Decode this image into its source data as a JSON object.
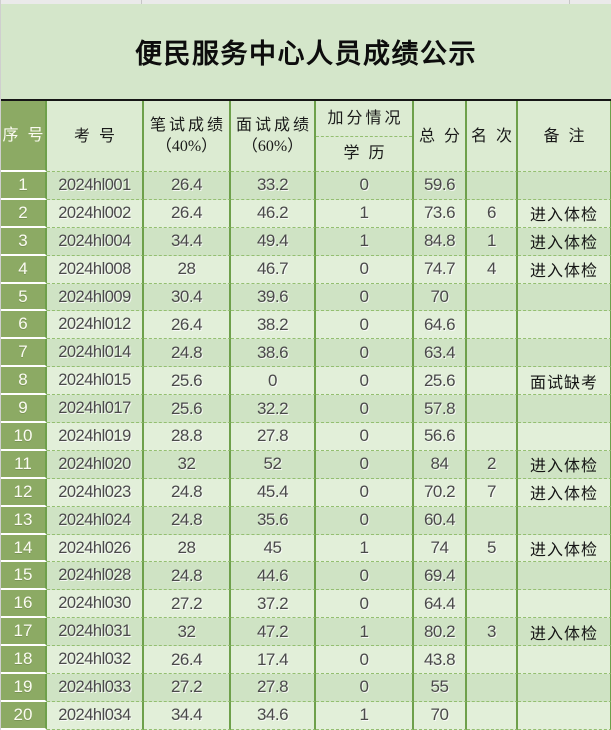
{
  "title": "便民服务中心人员成绩公示",
  "table": {
    "headers": {
      "serial": "序号",
      "exam_no": "考号",
      "written_line1": "笔试成绩",
      "written_line2": "（40%）",
      "interview_line1": "面试成绩",
      "interview_line2": "（60%）",
      "bonus": "加分情况",
      "education": "学历",
      "total": "总分",
      "rank": "名次",
      "remark": "备注"
    },
    "rows": [
      {
        "serial": "1",
        "exam_no": "2024hl001",
        "written": "26.4",
        "interview": "33.2",
        "education": "0",
        "total": "59.6",
        "rank": "",
        "remark": ""
      },
      {
        "serial": "2",
        "exam_no": "2024hl002",
        "written": "26.4",
        "interview": "46.2",
        "education": "1",
        "total": "73.6",
        "rank": "6",
        "remark": "进入体检"
      },
      {
        "serial": "3",
        "exam_no": "2024hl004",
        "written": "34.4",
        "interview": "49.4",
        "education": "1",
        "total": "84.8",
        "rank": "1",
        "remark": "进入体检"
      },
      {
        "serial": "4",
        "exam_no": "2024hl008",
        "written": "28",
        "interview": "46.7",
        "education": "0",
        "total": "74.7",
        "rank": "4",
        "remark": "进入体检"
      },
      {
        "serial": "5",
        "exam_no": "2024hl009",
        "written": "30.4",
        "interview": "39.6",
        "education": "0",
        "total": "70",
        "rank": "",
        "remark": ""
      },
      {
        "serial": "6",
        "exam_no": "2024hl012",
        "written": "26.4",
        "interview": "38.2",
        "education": "0",
        "total": "64.6",
        "rank": "",
        "remark": ""
      },
      {
        "serial": "7",
        "exam_no": "2024hl014",
        "written": "24.8",
        "interview": "38.6",
        "education": "0",
        "total": "63.4",
        "rank": "",
        "remark": ""
      },
      {
        "serial": "8",
        "exam_no": "2024hl015",
        "written": "25.6",
        "interview": "0",
        "education": "0",
        "total": "25.6",
        "rank": "",
        "remark": "面试缺考"
      },
      {
        "serial": "9",
        "exam_no": "2024hl017",
        "written": "25.6",
        "interview": "32.2",
        "education": "0",
        "total": "57.8",
        "rank": "",
        "remark": ""
      },
      {
        "serial": "10",
        "exam_no": "2024hl019",
        "written": "28.8",
        "interview": "27.8",
        "education": "0",
        "total": "56.6",
        "rank": "",
        "remark": ""
      },
      {
        "serial": "11",
        "exam_no": "2024hl020",
        "written": "32",
        "interview": "52",
        "education": "0",
        "total": "84",
        "rank": "2",
        "remark": "进入体检"
      },
      {
        "serial": "12",
        "exam_no": "2024hl023",
        "written": "24.8",
        "interview": "45.4",
        "education": "0",
        "total": "70.2",
        "rank": "7",
        "remark": "进入体检"
      },
      {
        "serial": "13",
        "exam_no": "2024hl024",
        "written": "24.8",
        "interview": "35.6",
        "education": "0",
        "total": "60.4",
        "rank": "",
        "remark": ""
      },
      {
        "serial": "14",
        "exam_no": "2024hl026",
        "written": "28",
        "interview": "45",
        "education": "1",
        "total": "74",
        "rank": "5",
        "remark": "进入体检"
      },
      {
        "serial": "15",
        "exam_no": "2024hl028",
        "written": "24.8",
        "interview": "44.6",
        "education": "0",
        "total": "69.4",
        "rank": "",
        "remark": ""
      },
      {
        "serial": "16",
        "exam_no": "2024hl030",
        "written": "27.2",
        "interview": "37.2",
        "education": "0",
        "total": "64.4",
        "rank": "",
        "remark": ""
      },
      {
        "serial": "17",
        "exam_no": "2024hl031",
        "written": "32",
        "interview": "47.2",
        "education": "1",
        "total": "80.2",
        "rank": "3",
        "remark": "进入体检"
      },
      {
        "serial": "18",
        "exam_no": "2024hl032",
        "written": "26.4",
        "interview": "17.4",
        "education": "0",
        "total": "43.8",
        "rank": "",
        "remark": ""
      },
      {
        "serial": "19",
        "exam_no": "2024hl033",
        "written": "27.2",
        "interview": "27.8",
        "education": "0",
        "total": "55",
        "rank": "",
        "remark": ""
      },
      {
        "serial": "20",
        "exam_no": "2024hl034",
        "written": "34.4",
        "interview": "34.6",
        "education": "1",
        "total": "70",
        "rank": "",
        "remark": ""
      }
    ]
  },
  "colors": {
    "title_bg": "#d4e6ca",
    "header_bg": "#dcebd2",
    "serial_green": "#8caa64",
    "band_dark": "#cfe3c4",
    "band_light": "#e2efd9",
    "border_green": "#6ea04b",
    "dashed_green": "#94bf71",
    "title_rule": "#161616"
  }
}
